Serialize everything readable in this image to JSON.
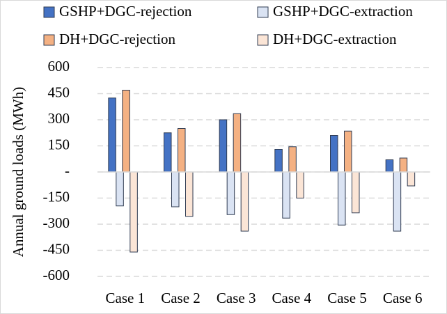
{
  "chart_data": {
    "type": "bar",
    "y_label": "Annual ground loads (MWh)",
    "categories": [
      "Case 1",
      "Case 2",
      "Case 3",
      "Case 4",
      "Case 5",
      "Case 6"
    ],
    "series": [
      {
        "name": "GSHP+DGC-rejection",
        "color": "#4472c4",
        "values": [
          425,
          225,
          300,
          130,
          210,
          70
        ]
      },
      {
        "name": "GSHP+DGC-extraction",
        "color": "#dae3f3",
        "values": [
          -195,
          -200,
          -245,
          -265,
          -305,
          -340
        ]
      },
      {
        "name": "DH+DGC-rejection",
        "color": "#f4b183",
        "values": [
          470,
          250,
          335,
          145,
          235,
          80
        ]
      },
      {
        "name": "DH+DGC-extraction",
        "color": "#fbe5d6",
        "values": [
          -460,
          -255,
          -340,
          -150,
          -235,
          -80
        ]
      }
    ],
    "ylim": [
      -600,
      600
    ],
    "yticks": [
      600,
      450,
      300,
      150,
      {
        "value": 0,
        "label": "-"
      },
      -150,
      -300,
      -450,
      -600
    ],
    "grid": true
  }
}
